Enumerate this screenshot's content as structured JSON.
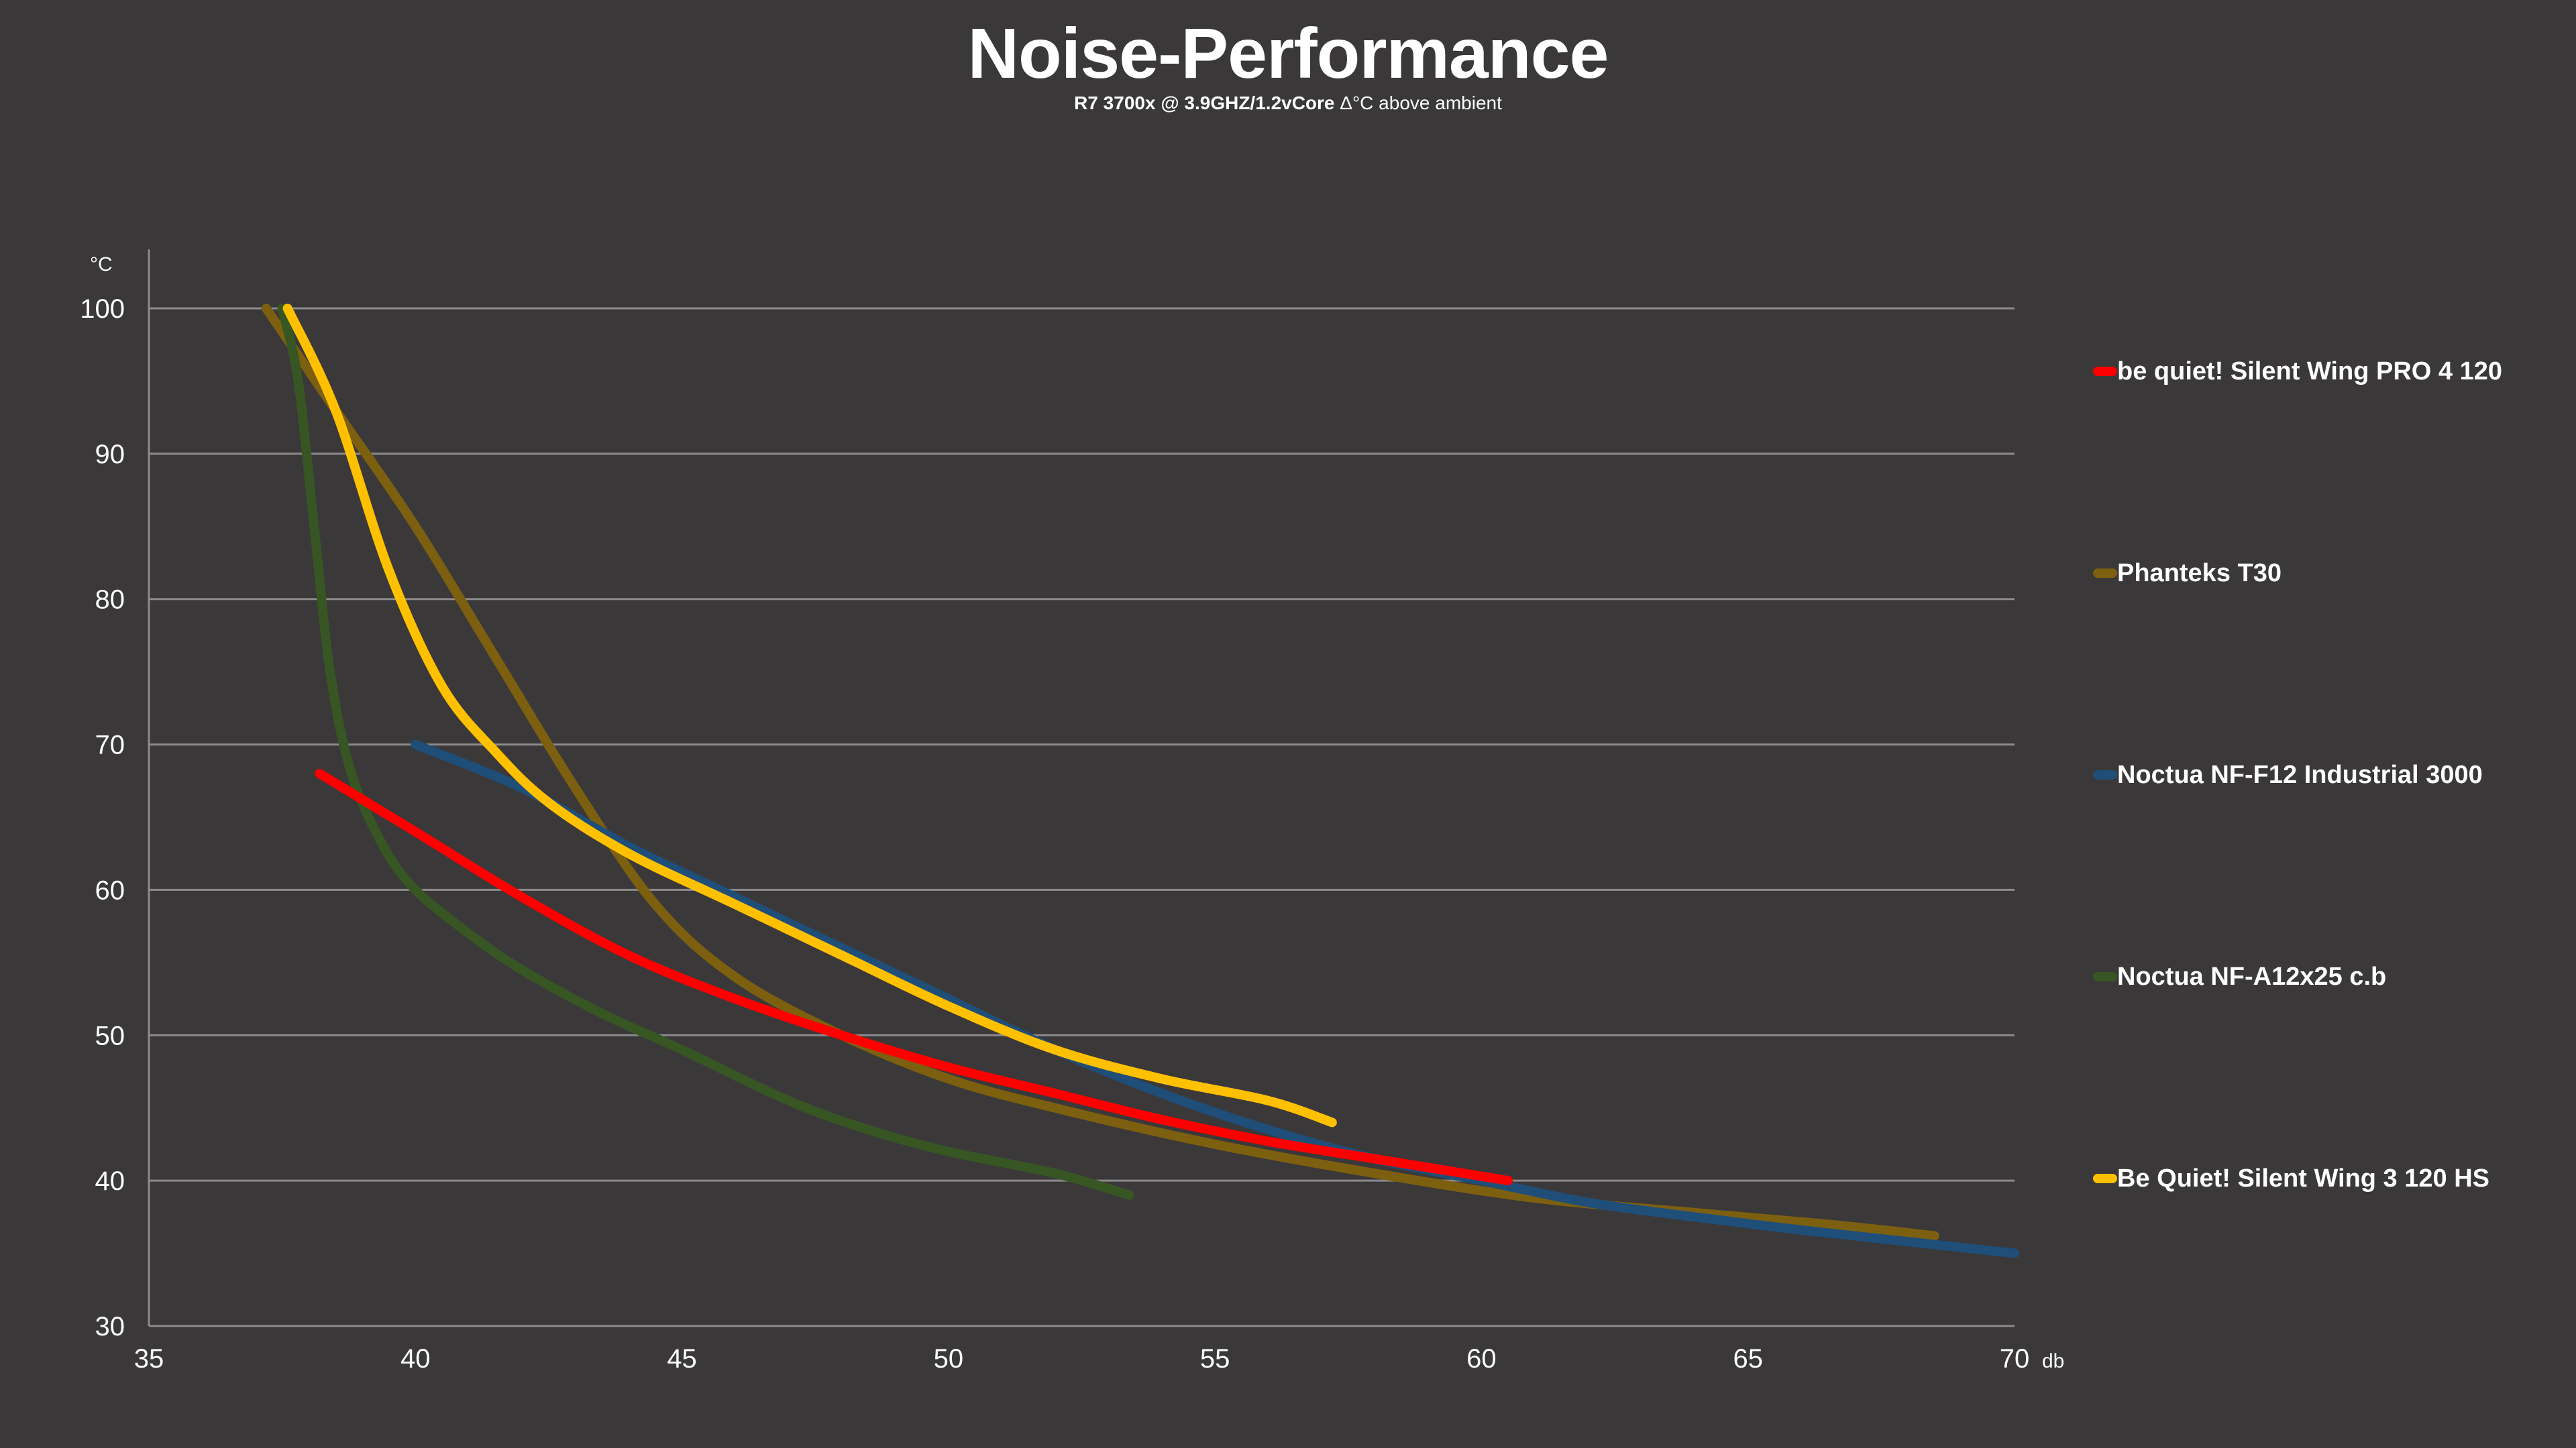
{
  "chart_data": {
    "type": "line",
    "title": "Noise-Performance",
    "subtitle_bold": "R7 3700x @ 3.9GHZ/1.2vCore",
    "subtitle_rest": " Δ°C above ambient",
    "xlabel": "db",
    "ylabel": "°C",
    "xlim": [
      35,
      70
    ],
    "ylim": [
      30,
      100
    ],
    "x_ticks": [
      35,
      40,
      45,
      50,
      55,
      60,
      65,
      70
    ],
    "y_ticks": [
      30,
      40,
      50,
      60,
      70,
      80,
      90,
      100
    ],
    "grid": "horizontal",
    "legend_position": "right",
    "series": [
      {
        "name": "be quiet! Silent Wing PRO 4 120",
        "color": "#ff0000",
        "points": [
          [
            38.2,
            68
          ],
          [
            40,
            64
          ],
          [
            42,
            59.5
          ],
          [
            44,
            55.5
          ],
          [
            46,
            52.5
          ],
          [
            48,
            50
          ],
          [
            50,
            47.8
          ],
          [
            52,
            46
          ],
          [
            54,
            44.2
          ],
          [
            56,
            42.7
          ],
          [
            58,
            41.5
          ],
          [
            60.5,
            40
          ]
        ]
      },
      {
        "name": "Phanteks T30",
        "color": "#7d5f10",
        "points": [
          [
            37.2,
            100
          ],
          [
            38.5,
            93
          ],
          [
            40,
            85
          ],
          [
            41.5,
            76
          ],
          [
            43,
            67
          ],
          [
            44.5,
            59
          ],
          [
            46,
            54
          ],
          [
            48,
            50
          ],
          [
            50,
            47
          ],
          [
            52,
            45
          ],
          [
            55,
            42.5
          ],
          [
            58,
            40.5
          ],
          [
            61,
            38.8
          ],
          [
            64,
            37.8
          ],
          [
            66.5,
            37
          ],
          [
            68.5,
            36.2
          ]
        ]
      },
      {
        "name": "Noctua NF-F12 Industrial 3000",
        "color": "#1f4e79",
        "points": [
          [
            40,
            70
          ],
          [
            42,
            67
          ],
          [
            44,
            63
          ],
          [
            46,
            59.5
          ],
          [
            48,
            56
          ],
          [
            50,
            52.5
          ],
          [
            52,
            49
          ],
          [
            54,
            46
          ],
          [
            56,
            43.5
          ],
          [
            58,
            41.5
          ],
          [
            60,
            40
          ],
          [
            62,
            38.5
          ],
          [
            64,
            37.5
          ],
          [
            66,
            36.6
          ],
          [
            68,
            35.8
          ],
          [
            70,
            35
          ]
        ]
      },
      {
        "name": "Noctua NF-A12x25 c.b",
        "color": "#375623",
        "points": [
          [
            37.5,
            100
          ],
          [
            37.8,
            95
          ],
          [
            38.1,
            85
          ],
          [
            38.4,
            75
          ],
          [
            38.8,
            68
          ],
          [
            39.4,
            63
          ],
          [
            40,
            60
          ],
          [
            41,
            57
          ],
          [
            42,
            54.5
          ],
          [
            43.5,
            51.5
          ],
          [
            45,
            49
          ],
          [
            47,
            45.5
          ],
          [
            48.5,
            43.5
          ],
          [
            50,
            42
          ],
          [
            52,
            40.5
          ],
          [
            53.4,
            39
          ]
        ]
      },
      {
        "name": "Be Quiet! Silent Wing 3 120 HS",
        "color": "#ffc000",
        "points": [
          [
            37.6,
            100
          ],
          [
            38.5,
            93
          ],
          [
            39.5,
            82
          ],
          [
            40.5,
            74
          ],
          [
            41.5,
            69.5
          ],
          [
            42.5,
            66
          ],
          [
            44,
            62.5
          ],
          [
            46,
            59
          ],
          [
            48,
            55.5
          ],
          [
            50,
            52
          ],
          [
            52,
            49
          ],
          [
            54,
            47
          ],
          [
            56,
            45.5
          ],
          [
            57.2,
            44
          ]
        ]
      }
    ]
  }
}
